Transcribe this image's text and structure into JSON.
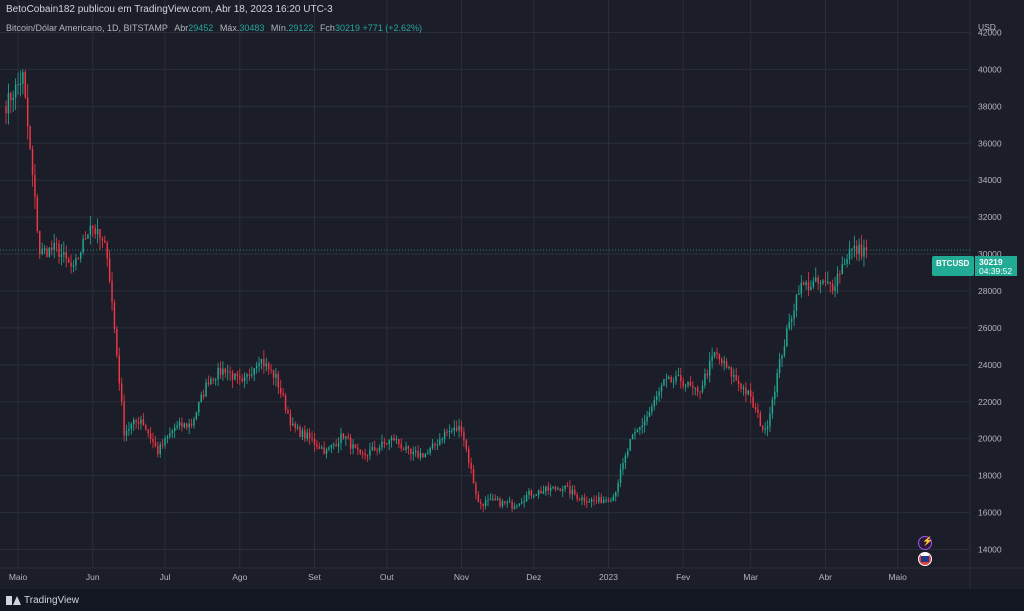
{
  "header": {
    "published_by": "BetoCobain182 publicou em TradingView.com, Abr 18, 2023 16:20 UTC-3"
  },
  "legend": {
    "title": "Bitcoin/Dólar Americano, 1D, BITSTAMP",
    "open_label": "Abr",
    "open_value": "29452",
    "high_label": "Máx.",
    "high_value": "30483",
    "low_label": "Mín.",
    "low_value": "29122",
    "close_label": "Fch",
    "close_value": "30219",
    "change": "+771 (+2.62%)"
  },
  "price_label": {
    "symbol": "BTCUSD",
    "price": "30219",
    "countdown": "04:39:52"
  },
  "footer": {
    "brand": "TradingView"
  },
  "colors": {
    "background": "#1b1e29",
    "up": "#22ab94",
    "down": "#f23645",
    "grid": "#2a2e39",
    "axis_text": "#b2b5be"
  },
  "badges": [
    "lightning-icon",
    "us-flag-icon"
  ],
  "chart_data": {
    "type": "candlestick",
    "title": "Bitcoin/Dólar Americano, 1D, BITSTAMP",
    "currency": "USD",
    "y_ticks": [
      14000,
      16000,
      18000,
      20000,
      22000,
      24000,
      26000,
      28000,
      30000,
      32000,
      34000,
      36000,
      38000,
      40000,
      42000
    ],
    "ylim": [
      13000,
      43000
    ],
    "x_ticks": [
      "Maio",
      "Jun",
      "Jul",
      "Ago",
      "Set",
      "Out",
      "Nov",
      "Dez",
      "2023",
      "Fev",
      "Mar",
      "Abr",
      "Maio"
    ],
    "x_range": [
      "2022-04-26",
      "2023-05-31"
    ],
    "grid": true,
    "last_price_line": 30219,
    "weekly_closes": [
      [
        "2022-04-26",
        38100
      ],
      [
        "2022-05-03",
        39600
      ],
      [
        "2022-05-10",
        30100
      ],
      [
        "2022-05-17",
        30300
      ],
      [
        "2022-05-24",
        29100
      ],
      [
        "2022-05-31",
        31700
      ],
      [
        "2022-06-07",
        30100
      ],
      [
        "2022-06-14",
        20400
      ],
      [
        "2022-06-21",
        21100
      ],
      [
        "2022-06-28",
        19300
      ],
      [
        "2022-07-05",
        20600
      ],
      [
        "2022-07-12",
        20800
      ],
      [
        "2022-07-19",
        23200
      ],
      [
        "2022-07-26",
        23800
      ],
      [
        "2022-08-02",
        22900
      ],
      [
        "2022-08-09",
        24400
      ],
      [
        "2022-08-16",
        23300
      ],
      [
        "2022-08-23",
        20600
      ],
      [
        "2022-08-30",
        20000
      ],
      [
        "2022-09-06",
        19300
      ],
      [
        "2022-09-13",
        20200
      ],
      [
        "2022-09-20",
        19000
      ],
      [
        "2022-09-27",
        19500
      ],
      [
        "2022-10-04",
        20000
      ],
      [
        "2022-10-11",
        19100
      ],
      [
        "2022-10-18",
        19200
      ],
      [
        "2022-10-25",
        20300
      ],
      [
        "2022-11-01",
        20600
      ],
      [
        "2022-11-08",
        16500
      ],
      [
        "2022-11-15",
        16600
      ],
      [
        "2022-11-22",
        16400
      ],
      [
        "2022-11-29",
        17000
      ],
      [
        "2022-12-06",
        17200
      ],
      [
        "2022-12-13",
        17400
      ],
      [
        "2022-12-20",
        16800
      ],
      [
        "2022-12-27",
        16600
      ],
      [
        "2023-01-03",
        16900
      ],
      [
        "2023-01-10",
        19800
      ],
      [
        "2023-01-17",
        21200
      ],
      [
        "2023-01-24",
        23000
      ],
      [
        "2023-01-31",
        23200
      ],
      [
        "2023-02-07",
        22400
      ],
      [
        "2023-02-14",
        24600
      ],
      [
        "2023-02-21",
        23500
      ],
      [
        "2023-02-28",
        22400
      ],
      [
        "2023-03-07",
        20300
      ],
      [
        "2023-03-14",
        24700
      ],
      [
        "2023-03-21",
        28200
      ],
      [
        "2023-03-28",
        28400
      ],
      [
        "2023-04-04",
        28300
      ],
      [
        "2023-04-11",
        30200
      ],
      [
        "2023-04-18",
        30219
      ]
    ]
  }
}
